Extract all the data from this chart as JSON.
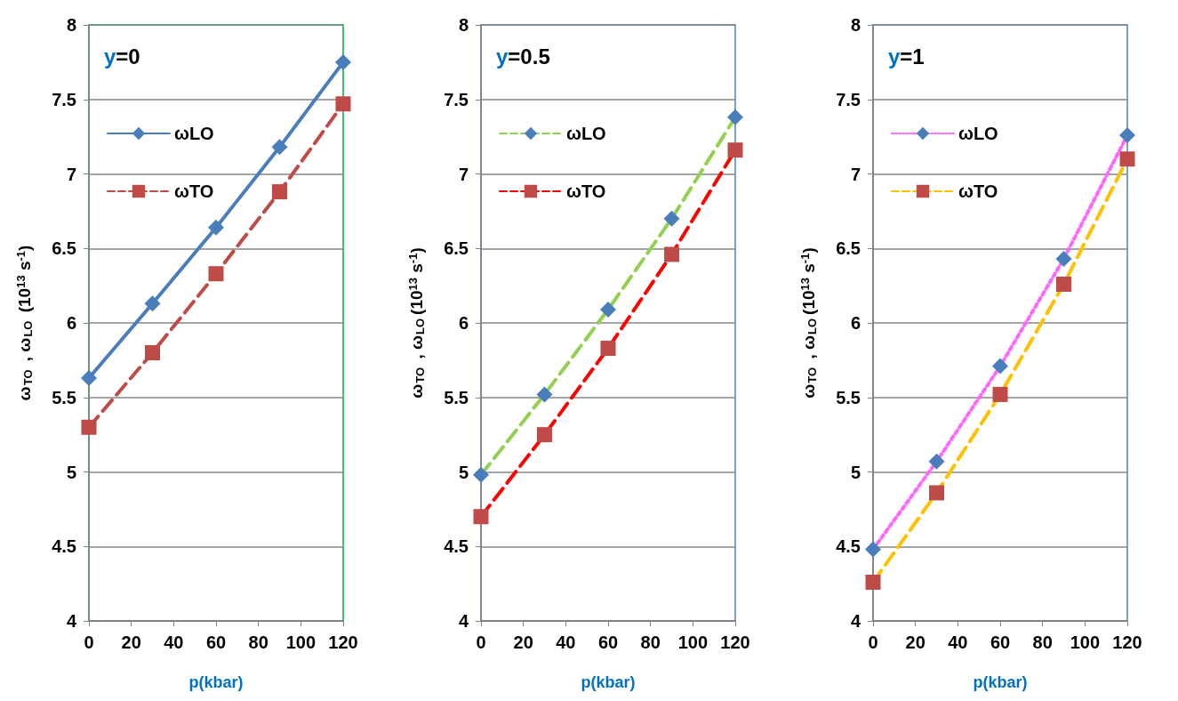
{
  "chart_data": [
    {
      "type": "line",
      "title": "y=0",
      "xlabel": "p(kbar)",
      "ylabel": "ω$_{TO}$ , ω$_{LO}$ (10$^{13}$ s$^{-1}$)",
      "x": [
        0,
        30,
        60,
        90,
        120
      ],
      "xlim": [
        0,
        120
      ],
      "xticks": [
        0,
        20,
        40,
        60,
        80,
        100,
        120
      ],
      "ylim": [
        4,
        8
      ],
      "yticks": [
        4,
        4.5,
        5,
        5.5,
        6,
        6.5,
        7,
        7.5,
        8
      ],
      "grid": "y",
      "legend": "top left",
      "series": [
        {
          "name": "ωLO",
          "color": "#4a7ebb",
          "colors": [
            "#4a7ebb",
            "#4a7ebb",
            "#4a7ebb",
            "#4a7ebb",
            "#4a7ebb"
          ],
          "marker": "diamond",
          "line_style": "solid",
          "values": [
            5.63,
            6.13,
            6.64,
            7.18,
            7.75
          ]
        },
        {
          "name": "ωTO",
          "color": "#be4b48",
          "colors": [
            "#be4b48",
            "#be4b48",
            "#be4b48",
            "#be4b48",
            "#be4b48"
          ],
          "marker": "square",
          "line_style": "dashed",
          "values": [
            5.3,
            5.8,
            6.33,
            6.88,
            7.47
          ]
        }
      ]
    },
    {
      "type": "line",
      "title": "y=0.5",
      "xlabel": "p(kbar)",
      "ylabel": "ω$_{TO}$ , ω$_{LO}$(10$^{13}$ s$^{-1}$)",
      "x": [
        0,
        30,
        60,
        90,
        120
      ],
      "xlim": [
        0,
        120
      ],
      "xticks": [
        0,
        20,
        40,
        60,
        80,
        100,
        120
      ],
      "ylim": [
        4,
        8
      ],
      "yticks": [
        4,
        4.5,
        5,
        5.5,
        6,
        6.5,
        7,
        7.5,
        8
      ],
      "grid": "y",
      "legend": "top left",
      "series": [
        {
          "name": "ωLO",
          "color": "#92d050",
          "colors": [
            "#4a7ebb",
            "#4a7ebb",
            "#4a7ebb",
            "#4a7ebb",
            "#4a7ebb"
          ],
          "marker": "diamond",
          "line_style": "dashed",
          "values": [
            4.98,
            5.52,
            6.09,
            6.7,
            7.38
          ]
        },
        {
          "name": "ωTO",
          "color": "#ff0000",
          "colors": [
            "#be4b48",
            "#be4b48",
            "#be4b48",
            "#be4b48",
            "#be4b48"
          ],
          "marker": "square",
          "line_style": "dashed",
          "values": [
            4.7,
            5.25,
            5.83,
            6.46,
            7.16
          ]
        }
      ]
    },
    {
      "type": "line",
      "title": "y=1",
      "xlabel": "p(kbar)",
      "ylabel": "ω$_{TO}$ , ω$_{LO}$(10$^{13}$ s$^{-1}$)",
      "x": [
        0,
        30,
        60,
        90,
        120
      ],
      "xlim": [
        0,
        120
      ],
      "xticks": [
        0,
        20,
        40,
        60,
        80,
        100,
        120
      ],
      "ylim": [
        4,
        8
      ],
      "yticks": [
        4,
        4.5,
        5,
        5.5,
        6,
        6.5,
        7,
        7.5,
        8
      ],
      "grid": "y",
      "legend": "top left",
      "series": [
        {
          "name": "ωLO",
          "color": "#ff66ff",
          "colors": [
            "#4a7ebb",
            "#4a7ebb",
            "#4a7ebb",
            "#4a7ebb",
            "#4a7ebb"
          ],
          "marker": "diamond",
          "line_style": "dotted",
          "values": [
            4.48,
            5.07,
            5.71,
            6.43,
            7.26
          ]
        },
        {
          "name": "ωTO",
          "color": "#ffc000",
          "colors": [
            "#be4b48",
            "#be4b48",
            "#be4b48",
            "#be4b48",
            "#be4b48"
          ],
          "marker": "square",
          "line_style": "dashed",
          "values": [
            4.26,
            4.86,
            5.52,
            6.26,
            7.1
          ]
        }
      ]
    }
  ]
}
